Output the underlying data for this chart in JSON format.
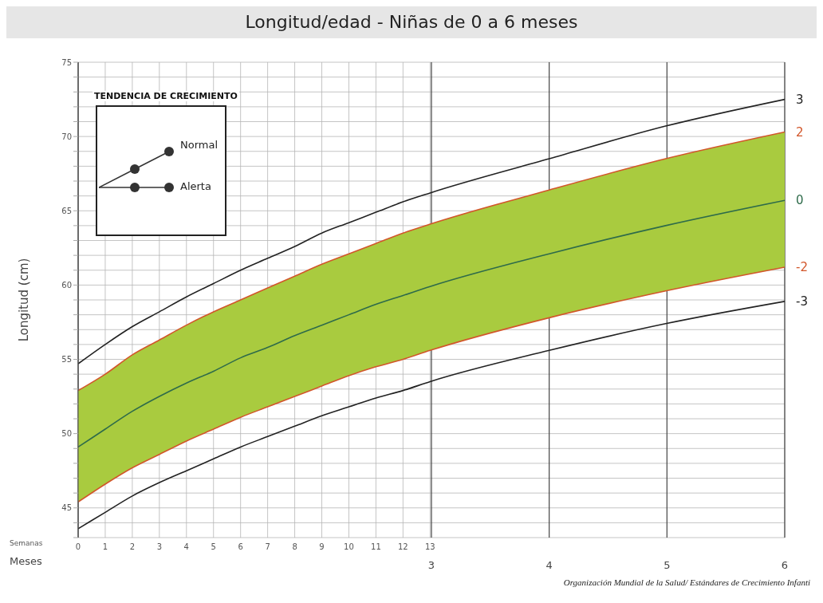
{
  "chart_data": {
    "type": "line",
    "title": "Longitud/edad  -  Niñas de 0 a 6 meses",
    "xlabel": "Semanas",
    "x2label": "Meses",
    "ylabel": "Longitud (cm)",
    "x": [
      0,
      1,
      2,
      3,
      4,
      5,
      6,
      7,
      8,
      9,
      10,
      11,
      12,
      13,
      17.4,
      21.7,
      26.1
    ],
    "xlim": [
      0,
      26.1
    ],
    "xticks": [
      0,
      1,
      2,
      3,
      4,
      5,
      6,
      7,
      8,
      9,
      10,
      11,
      12,
      13
    ],
    "x2lim": [
      0,
      6
    ],
    "x2ticks": [
      3,
      4,
      5,
      6
    ],
    "ylim": [
      43,
      75
    ],
    "yticks": [
      {
        "value": 43,
        "label": null
      },
      {
        "value": 44,
        "label": null
      },
      45,
      {
        "value": 46,
        "label": null
      },
      {
        "value": 47,
        "label": null
      },
      {
        "value": 48,
        "label": null
      },
      {
        "value": 49,
        "label": null
      },
      50,
      {
        "value": 51,
        "label": null
      },
      {
        "value": 52,
        "label": null
      },
      {
        "value": 53,
        "label": null
      },
      {
        "value": 54,
        "label": null
      },
      55,
      {
        "value": 56,
        "label": null
      },
      {
        "value": 57,
        "label": null
      },
      {
        "value": 58,
        "label": null
      },
      {
        "value": 59,
        "label": null
      },
      60,
      {
        "value": 61,
        "label": null
      },
      {
        "value": 62,
        "label": null
      },
      {
        "value": 63,
        "label": null
      },
      {
        "value": 64,
        "label": null
      },
      65,
      {
        "value": 66,
        "label": null
      },
      {
        "value": 67,
        "label": null
      },
      {
        "value": 68,
        "label": null
      },
      {
        "value": 69,
        "label": null
      },
      70,
      {
        "value": 71,
        "label": null
      },
      {
        "value": 72,
        "label": null
      },
      {
        "value": 73,
        "label": null
      },
      {
        "value": 74,
        "label": null
      },
      75
    ],
    "grid": true,
    "legend": false,
    "marker": "none",
    "line_style": "solid",
    "series": [
      {
        "name": "3",
        "color": "#222222",
        "values": [
          54.7,
          56.0,
          57.2,
          58.2,
          59.2,
          60.1,
          61.0,
          61.8,
          62.6,
          63.5,
          64.2,
          64.9,
          65.6,
          66.2,
          68.5,
          70.7,
          72.5
        ]
      },
      {
        "name": "2",
        "color": "#d2562a",
        "values": [
          52.9,
          54.0,
          55.3,
          56.3,
          57.3,
          58.2,
          59.0,
          59.8,
          60.6,
          61.4,
          62.1,
          62.8,
          63.5,
          64.1,
          66.4,
          68.5,
          70.3
        ]
      },
      {
        "name": "0",
        "color": "#2e6b4a",
        "values": [
          49.1,
          50.3,
          51.5,
          52.5,
          53.4,
          54.2,
          55.1,
          55.8,
          56.6,
          57.3,
          58.0,
          58.7,
          59.3,
          59.9,
          62.1,
          64.0,
          65.7
        ],
        "lower": [
          45.4,
          46.6,
          47.7,
          48.6,
          49.5,
          50.3,
          51.1,
          51.8,
          52.5,
          53.2,
          53.9,
          54.5,
          55.0,
          55.6,
          57.8,
          59.6,
          61.2
        ],
        "upper": [
          52.9,
          54.0,
          55.3,
          56.3,
          57.3,
          58.2,
          59.0,
          59.8,
          60.6,
          61.4,
          62.1,
          62.8,
          63.5,
          64.1,
          66.4,
          68.5,
          70.3
        ]
      },
      {
        "name": "-2",
        "color": "#d2562a",
        "values": [
          45.4,
          46.6,
          47.7,
          48.6,
          49.5,
          50.3,
          51.1,
          51.8,
          52.5,
          53.2,
          53.9,
          54.5,
          55.0,
          55.6,
          57.8,
          59.6,
          61.2
        ]
      },
      {
        "name": "-3",
        "color": "#222222",
        "values": [
          43.6,
          44.7,
          45.8,
          46.7,
          47.5,
          48.3,
          49.1,
          49.8,
          50.5,
          51.2,
          51.8,
          52.4,
          52.9,
          53.5,
          55.6,
          57.4,
          58.9
        ]
      }
    ],
    "annotations": [
      "TENDENCIA DE CRECIMIENTO",
      "Normal",
      "Alerta",
      "Organización Mundial de la Salud/ Estándares de Crecimiento Infanti"
    ]
  }
}
